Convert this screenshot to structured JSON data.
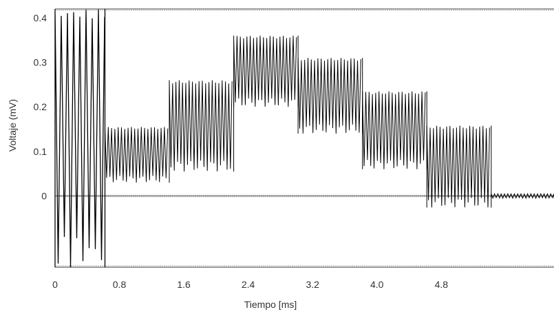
{
  "chart_data": {
    "type": "line",
    "title": "",
    "xlabel": "Tiempo [ms]",
    "ylabel": "Voltaje (mV)",
    "xlim": [
      0,
      6.2
    ],
    "ylim": [
      -0.16,
      0.42
    ],
    "x_ticks": [
      {
        "value": 0,
        "label": "0"
      },
      {
        "value": 0.8,
        "label": "0.8"
      },
      {
        "value": 1.6,
        "label": "1.6"
      },
      {
        "value": 2.4,
        "label": "2.4"
      },
      {
        "value": 3.2,
        "label": "3.2"
      },
      {
        "value": 4.0,
        "label": "4.0"
      },
      {
        "value": 4.8,
        "label": "4.8"
      }
    ],
    "y_ticks": [
      {
        "value": 0,
        "label": "0"
      },
      {
        "value": 0.1,
        "label": "0.1"
      },
      {
        "value": 0.2,
        "label": "0.2"
      },
      {
        "value": 0.3,
        "label": "0.3"
      },
      {
        "value": 0.4,
        "label": "0.4"
      }
    ],
    "baseline": 0,
    "color": "#000000",
    "series": [
      {
        "segments": [
          {
            "x_start": 0,
            "x_end": 0.62,
            "high": 0.42,
            "low": -0.16
          },
          {
            "x_start": 0.62,
            "x_end": 1.42,
            "high": 0.155,
            "low": 0.03
          },
          {
            "x_start": 1.42,
            "x_end": 2.22,
            "high": 0.26,
            "low": 0.055
          },
          {
            "x_start": 2.22,
            "x_end": 3.02,
            "high": 0.36,
            "low": 0.2
          },
          {
            "x_start": 3.02,
            "x_end": 3.82,
            "high": 0.31,
            "low": 0.14
          },
          {
            "x_start": 3.82,
            "x_end": 4.62,
            "high": 0.235,
            "low": 0.06
          },
          {
            "x_start": 4.62,
            "x_end": 5.42,
            "high": 0.158,
            "low": -0.026
          },
          {
            "x_start": 5.42,
            "x_end": 6.2,
            "high": 0.005,
            "low": -0.005
          }
        ]
      }
    ]
  }
}
